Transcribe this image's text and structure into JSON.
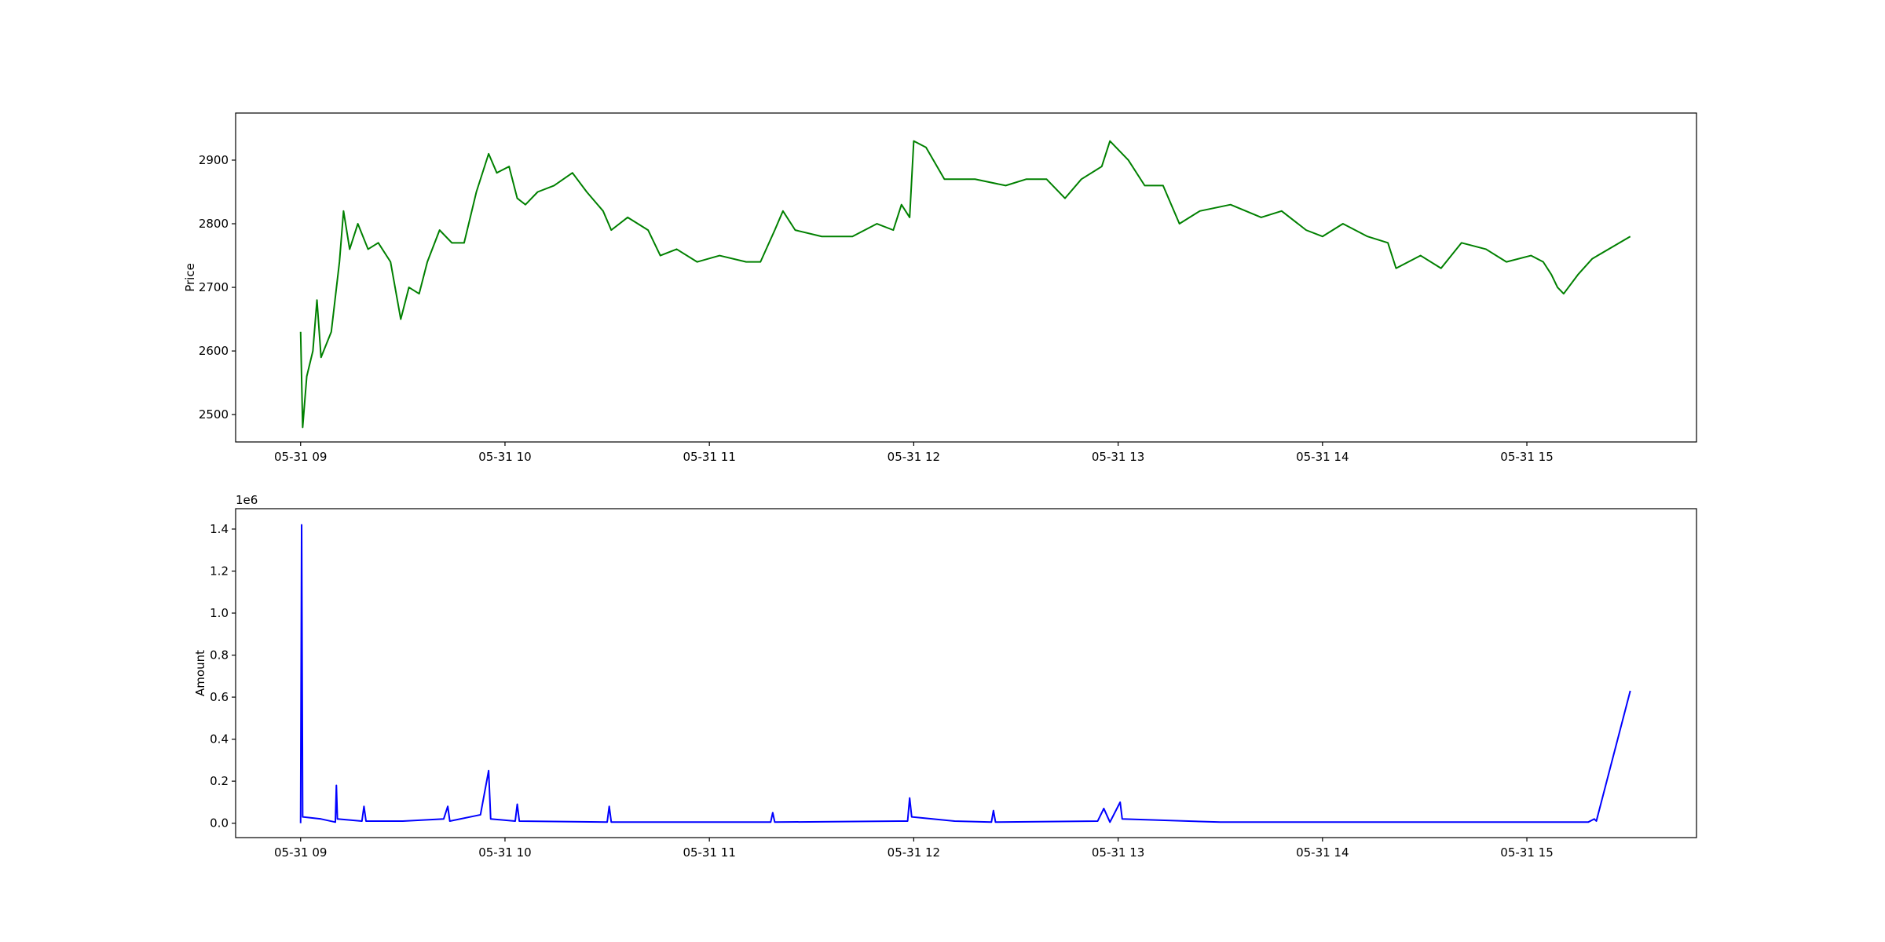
{
  "chart_data": [
    {
      "type": "line",
      "ylabel": "Price",
      "xlim": [
        8.682,
        15.83
      ],
      "ylim": [
        2457,
        2974
      ],
      "xticks": [
        {
          "value": 9,
          "label": "05-31 09"
        },
        {
          "value": 10,
          "label": "05-31 10"
        },
        {
          "value": 11,
          "label": "05-31 11"
        },
        {
          "value": 12,
          "label": "05-31 12"
        },
        {
          "value": 13,
          "label": "05-31 13"
        },
        {
          "value": 14,
          "label": "05-31 14"
        },
        {
          "value": 15,
          "label": "05-31 15"
        }
      ],
      "yticks": [
        2500,
        2600,
        2700,
        2800,
        2900
      ],
      "x": [
        9.0,
        9.01,
        9.03,
        9.06,
        9.08,
        9.1,
        9.15,
        9.19,
        9.21,
        9.24,
        9.28,
        9.33,
        9.38,
        9.44,
        9.49,
        9.53,
        9.58,
        9.62,
        9.68,
        9.74,
        9.8,
        9.86,
        9.92,
        9.96,
        10.02,
        10.06,
        10.1,
        10.16,
        10.24,
        10.33,
        10.4,
        10.48,
        10.52,
        10.6,
        10.7,
        10.76,
        10.84,
        10.94,
        11.05,
        11.18,
        11.25,
        11.32,
        11.36,
        11.42,
        11.55,
        11.7,
        11.82,
        11.9,
        11.94,
        11.98,
        12.0,
        12.06,
        12.15,
        12.3,
        12.45,
        12.55,
        12.65,
        12.74,
        12.82,
        12.92,
        12.96,
        13.05,
        13.13,
        13.22,
        13.3,
        13.4,
        13.55,
        13.7,
        13.8,
        13.92,
        14.0,
        14.1,
        14.22,
        14.32,
        14.36,
        14.48,
        14.58,
        14.68,
        14.8,
        14.9,
        15.02,
        15.08,
        15.12,
        15.15,
        15.18,
        15.25,
        15.32,
        15.506
      ],
      "series": [
        {
          "color": "#008000",
          "values": [
            2630,
            2480,
            2560,
            2600,
            2680,
            2590,
            2630,
            2740,
            2820,
            2760,
            2800,
            2760,
            2770,
            2740,
            2650,
            2700,
            2690,
            2740,
            2790,
            2770,
            2770,
            2850,
            2910,
            2880,
            2890,
            2840,
            2830,
            2850,
            2860,
            2880,
            2850,
            2820,
            2790,
            2810,
            2790,
            2750,
            2760,
            2740,
            2750,
            2740,
            2740,
            2790,
            2820,
            2790,
            2780,
            2780,
            2800,
            2790,
            2830,
            2810,
            2930,
            2920,
            2870,
            2870,
            2860,
            2870,
            2870,
            2840,
            2870,
            2890,
            2930,
            2900,
            2860,
            2860,
            2800,
            2820,
            2830,
            2810,
            2820,
            2790,
            2780,
            2800,
            2780,
            2770,
            2730,
            2750,
            2730,
            2770,
            2760,
            2740,
            2750,
            2740,
            2720,
            2700,
            2690,
            2720,
            2745,
            2780
          ]
        }
      ]
    },
    {
      "type": "line",
      "ylabel": "Amount",
      "offset_text": "1e6",
      "xlim": [
        8.682,
        15.83
      ],
      "ylim": [
        -68600,
        1497000
      ],
      "xticks": [
        {
          "value": 9,
          "label": "05-31 09"
        },
        {
          "value": 10,
          "label": "05-31 10"
        },
        {
          "value": 11,
          "label": "05-31 11"
        },
        {
          "value": 12,
          "label": "05-31 12"
        },
        {
          "value": 13,
          "label": "05-31 13"
        },
        {
          "value": 14,
          "label": "05-31 14"
        },
        {
          "value": 15,
          "label": "05-31 15"
        }
      ],
      "yticks": [
        {
          "value": 0,
          "label": "0.0"
        },
        {
          "value": 200000,
          "label": "0.2"
        },
        {
          "value": 400000,
          "label": "0.4"
        },
        {
          "value": 600000,
          "label": "0.6"
        },
        {
          "value": 800000,
          "label": "0.8"
        },
        {
          "value": 1000000,
          "label": "1.0"
        },
        {
          "value": 1200000,
          "label": "1.2"
        },
        {
          "value": 1400000,
          "label": "1.4"
        }
      ],
      "x": [
        9.0,
        9.005,
        9.01,
        9.1,
        9.17,
        9.175,
        9.18,
        9.3,
        9.31,
        9.32,
        9.5,
        9.7,
        9.72,
        9.73,
        9.88,
        9.92,
        9.93,
        10.05,
        10.06,
        10.07,
        10.5,
        10.51,
        10.52,
        11.0,
        11.3,
        11.31,
        11.32,
        11.97,
        11.98,
        11.99,
        12.2,
        12.38,
        12.39,
        12.4,
        12.9,
        12.93,
        12.96,
        13.01,
        13.02,
        13.5,
        14.0,
        14.5,
        15.0,
        15.3,
        15.33,
        15.34,
        15.506
      ],
      "series": [
        {
          "color": "#0000ff",
          "values": [
            0,
            1420000,
            30000,
            20000,
            5000,
            180000,
            20000,
            10000,
            80000,
            10000,
            10000,
            20000,
            80000,
            10000,
            40000,
            250000,
            20000,
            10000,
            90000,
            10000,
            5000,
            80000,
            5000,
            5000,
            5000,
            50000,
            5000,
            10000,
            120000,
            30000,
            10000,
            5000,
            60000,
            5000,
            10000,
            70000,
            5000,
            100000,
            20000,
            5000,
            5000,
            5000,
            5000,
            5000,
            20000,
            10000,
            630000
          ]
        }
      ]
    }
  ]
}
